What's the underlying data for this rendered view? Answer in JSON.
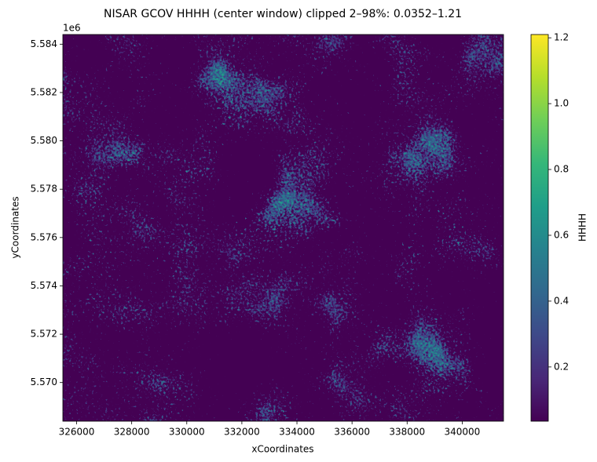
{
  "chart_data": {
    "type": "image",
    "title": "NISAR GCOV HHHH (center window) clipped 2–98%: 0.0352–1.21",
    "x_label": "xCoordinates",
    "y_label": "yCoordinates",
    "y_offset_label": "1e6",
    "xlim": [
      325500,
      341500
    ],
    "xticks": [
      326000,
      328000,
      330000,
      332000,
      334000,
      336000,
      338000,
      340000
    ],
    "ylim": [
      5568400,
      5584400
    ],
    "yticks": [
      {
        "value": 5570000,
        "label": "5.570"
      },
      {
        "value": 5572000,
        "label": "5.572"
      },
      {
        "value": 5574000,
        "label": "5.574"
      },
      {
        "value": 5576000,
        "label": "5.576"
      },
      {
        "value": 5578000,
        "label": "5.578"
      },
      {
        "value": 5580000,
        "label": "5.580"
      },
      {
        "value": 5582000,
        "label": "5.582"
      },
      {
        "value": 5584000,
        "label": "5.584"
      }
    ],
    "colormap": "viridis",
    "colorbar_label": "HHHH",
    "clim": [
      0.0352,
      1.21
    ],
    "colorbar_ticks": [
      {
        "value": 0.2,
        "label": "0.2"
      },
      {
        "value": 0.4,
        "label": "0.4"
      },
      {
        "value": 0.6,
        "label": "0.6"
      },
      {
        "value": 0.8,
        "label": "0.8"
      },
      {
        "value": 1.0,
        "label": "1.0"
      },
      {
        "value": 1.2,
        "label": "1.2"
      }
    ]
  }
}
